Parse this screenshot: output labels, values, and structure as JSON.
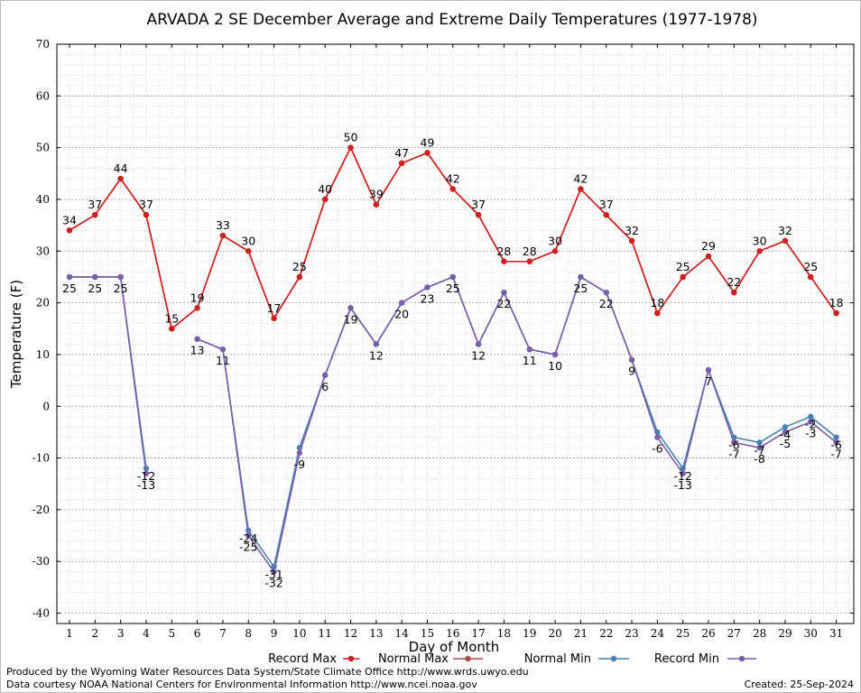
{
  "chart_data": {
    "type": "line",
    "title": "ARVADA 2 SE December Average and Extreme Daily Temperatures (1977-1978)",
    "xlabel": "Day of Month",
    "ylabel": "Temperature (F)",
    "ylim": [
      -42,
      70
    ],
    "y_ticks": [
      "70",
      "60",
      "50",
      "40",
      "30",
      "20",
      "10",
      "0",
      "-10",
      "-20",
      "-30",
      "-40"
    ],
    "y_tick_values": [
      70,
      60,
      50,
      40,
      30,
      20,
      10,
      0,
      -10,
      -20,
      -30,
      -40
    ],
    "x": [
      1,
      2,
      3,
      4,
      5,
      6,
      7,
      8,
      9,
      10,
      11,
      12,
      13,
      14,
      15,
      16,
      17,
      18,
      19,
      20,
      21,
      22,
      23,
      24,
      25,
      26,
      27,
      28,
      29,
      30,
      31
    ],
    "x_ticks": [
      "1",
      "2",
      "3",
      "4",
      "5",
      "6",
      "7",
      "8",
      "9",
      "10",
      "11",
      "12",
      "13",
      "14",
      "15",
      "16",
      "17",
      "18",
      "19",
      "20",
      "21",
      "22",
      "23",
      "24",
      "25",
      "26",
      "27",
      "28",
      "29",
      "30",
      "31"
    ],
    "grid": true,
    "legend_position": "bottom",
    "series": [
      {
        "name": "Record Max",
        "color": "#d11f1f",
        "values": [
          34,
          37,
          44,
          37,
          15,
          19,
          33,
          30,
          17,
          25,
          40,
          50,
          39,
          47,
          49,
          42,
          37,
          28,
          28,
          30,
          42,
          37,
          32,
          18,
          25,
          29,
          22,
          30,
          32,
          25,
          18
        ],
        "labels": [
          "34",
          "37",
          "44",
          "37",
          "15",
          "19",
          "33",
          "30",
          "17",
          "25",
          "40",
          "50",
          "39",
          "47",
          "49",
          "42",
          "37",
          "28",
          "28",
          "30",
          "42",
          "37",
          "32",
          "18",
          "25",
          "29",
          "22",
          "30",
          "32",
          "25",
          "18"
        ]
      },
      {
        "name": "Normal Max",
        "color": "#b04848",
        "values": [
          34,
          37,
          44,
          37,
          15,
          19,
          33,
          30,
          17,
          25,
          40,
          50,
          39,
          47,
          49,
          42,
          37,
          28,
          28,
          30,
          42,
          37,
          32,
          18,
          25,
          29,
          22,
          30,
          32,
          25,
          18
        ],
        "labels": []
      },
      {
        "name": "Normal Min",
        "color": "#4682b4",
        "values": [
          25,
          25,
          25,
          -12,
          null,
          13,
          11,
          -24,
          -31,
          -8,
          6,
          19,
          12,
          20,
          23,
          25,
          12,
          22,
          11,
          10,
          25,
          22,
          9,
          -5,
          -12,
          7,
          -6,
          -7,
          -4,
          -2,
          -6
        ],
        "labels": []
      },
      {
        "name": "Record Min",
        "color": "#7b5ea7",
        "values": [
          25,
          25,
          25,
          -13,
          null,
          13,
          11,
          -25,
          -32,
          -9,
          6,
          19,
          12,
          20,
          23,
          25,
          12,
          22,
          11,
          10,
          25,
          22,
          9,
          -6,
          -13,
          7,
          -7,
          -8,
          -5,
          -3,
          -7
        ],
        "labels": [
          "25",
          "25",
          "25",
          "-13",
          "",
          "13",
          "11",
          "-25",
          "-32",
          "-9",
          "6",
          "19",
          "12",
          "20",
          "23",
          "25",
          "12",
          "22",
          "11",
          "10",
          "25",
          "22",
          "9",
          "-6",
          "-13",
          "7",
          "-7",
          "-8",
          "-5",
          "-3",
          "-7"
        ]
      }
    ],
    "extra_labels": [
      {
        "day": 4,
        "text": "-12"
      },
      {
        "day": 8,
        "text": "-24"
      },
      {
        "day": 9,
        "text": "-31"
      },
      {
        "day": 25,
        "text": "-12"
      },
      {
        "day": 27,
        "text": "-6"
      },
      {
        "day": 28,
        "text": "-7"
      },
      {
        "day": 29,
        "text": "-4"
      },
      {
        "day": 30,
        "text": "-2"
      },
      {
        "day": 31,
        "text": "-6"
      }
    ]
  },
  "footer": {
    "left_line1": "Produced by the Wyoming Water Resources Data System/State Climate Office http://www.wrds.uwyo.edu",
    "left_line2": "Data courtesy NOAA National Centers for Environmental Information http://www.ncei.noaa.gov",
    "created": "Created:  25-Sep-2024"
  }
}
